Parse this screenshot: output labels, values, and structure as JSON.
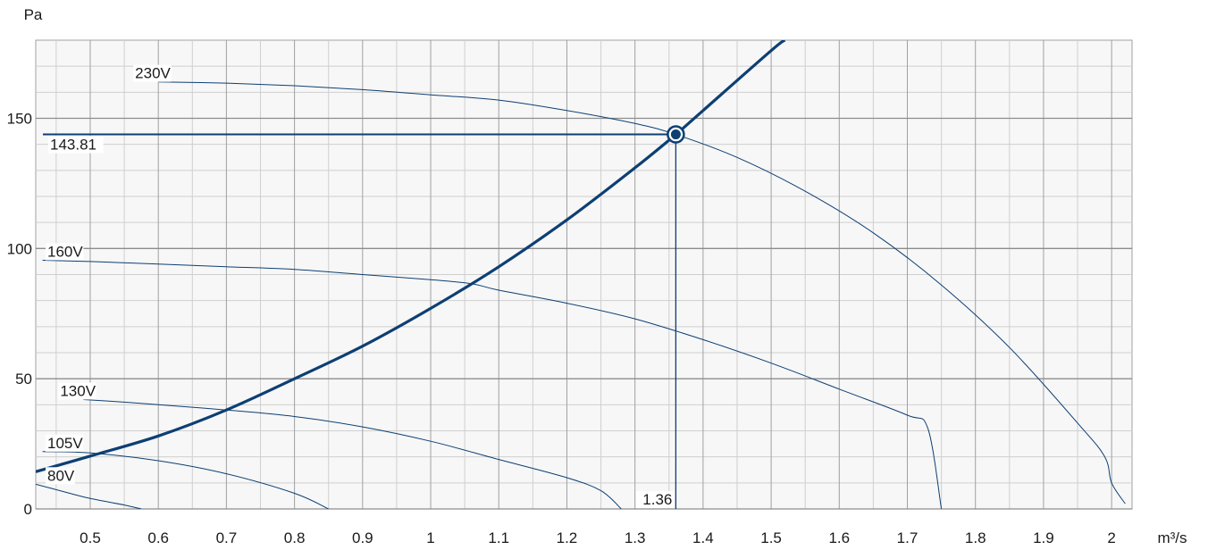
{
  "chart_data": {
    "type": "line",
    "xlabel": "m³/s",
    "ylabel": "Pa",
    "xlim": [
      0.42,
      2.03
    ],
    "ylim": [
      0,
      180
    ],
    "x_ticks": [
      0.5,
      0.6,
      0.7,
      0.8,
      0.9,
      1,
      1.1,
      1.2,
      1.3,
      1.4,
      1.5,
      1.6,
      1.7,
      1.8,
      1.9,
      2
    ],
    "x_tick_labels": [
      "0.5",
      "0.6",
      "0.7",
      "0.8",
      "0.9",
      "1",
      "1.1",
      "1.2",
      "1.3",
      "1.4",
      "1.5",
      "1.6",
      "1.7",
      "1.8",
      "1.9",
      "2"
    ],
    "y_ticks": [
      0,
      50,
      100,
      150
    ],
    "y_tick_labels": [
      "0",
      "50",
      "100",
      "150"
    ],
    "grid": true,
    "series": [
      {
        "name": "230V",
        "x": [
          0.6,
          0.7,
          0.8,
          0.9,
          1.0,
          1.1,
          1.2,
          1.3,
          1.36,
          1.45,
          1.55,
          1.65,
          1.75,
          1.85,
          1.95,
          1.99,
          2.0,
          2.02
        ],
        "y": [
          164,
          163.5,
          162.5,
          161,
          159,
          157,
          153,
          148,
          143.8,
          135,
          122,
          106,
          86,
          62,
          33,
          20,
          10,
          2
        ]
      },
      {
        "name": "160V",
        "x": [
          0.43,
          0.5,
          0.6,
          0.7,
          0.8,
          0.9,
          1.0,
          1.06,
          1.1,
          1.2,
          1.3,
          1.4,
          1.5,
          1.6,
          1.7,
          1.73,
          1.75
        ],
        "y": [
          95.5,
          95,
          94,
          93,
          92,
          90,
          88,
          86.5,
          84,
          79,
          73,
          65,
          56,
          46,
          36,
          31,
          0
        ]
      },
      {
        "name": "130V",
        "x": [
          0.49,
          0.55,
          0.6,
          0.7,
          0.8,
          0.9,
          1.0,
          1.1,
          1.2,
          1.25,
          1.28
        ],
        "y": [
          42,
          41,
          40,
          38,
          35.5,
          31.5,
          26,
          19,
          12,
          7,
          0
        ]
      },
      {
        "name": "105V",
        "x": [
          0.43,
          0.5,
          0.6,
          0.7,
          0.8,
          0.85
        ],
        "y": [
          22,
          21.5,
          18.5,
          13.5,
          6,
          0
        ]
      },
      {
        "name": "80V",
        "x": [
          0.42,
          0.47,
          0.5,
          0.55,
          0.575
        ],
        "y": [
          9.5,
          6,
          4,
          1.5,
          0
        ]
      },
      {
        "name": "",
        "x": [
          0.42,
          0.5,
          0.6,
          0.7,
          0.8,
          0.9,
          1.0,
          1.1,
          1.2,
          1.3,
          1.36,
          1.4,
          1.5,
          1.52
        ],
        "y": [
          14.3,
          20.3,
          28,
          38,
          50,
          62.5,
          77,
          93,
          111,
          131,
          143.8,
          153,
          176,
          180
        ]
      }
    ],
    "operating_point": {
      "x": 1.36,
      "y": 143.81,
      "x_label": "1.36",
      "y_label": "143.81"
    },
    "curve_labels": [
      {
        "text": "230V",
        "x": 0.6,
        "y": 164
      },
      {
        "text": "160V",
        "x": 0.43,
        "y": 95.5
      },
      {
        "text": "130V",
        "x": 0.49,
        "y": 42
      },
      {
        "text": "105V",
        "x": 0.43,
        "y": 22
      },
      {
        "text": "80V",
        "x": 0.42,
        "y": 9.5
      }
    ],
    "colors": {
      "curves": "#0d3f73",
      "system": "#0d3f73",
      "grid_major": "#a0a0a0",
      "grid_minor": "#cfcfcf",
      "plot_bg": "#f7f7f7"
    }
  }
}
